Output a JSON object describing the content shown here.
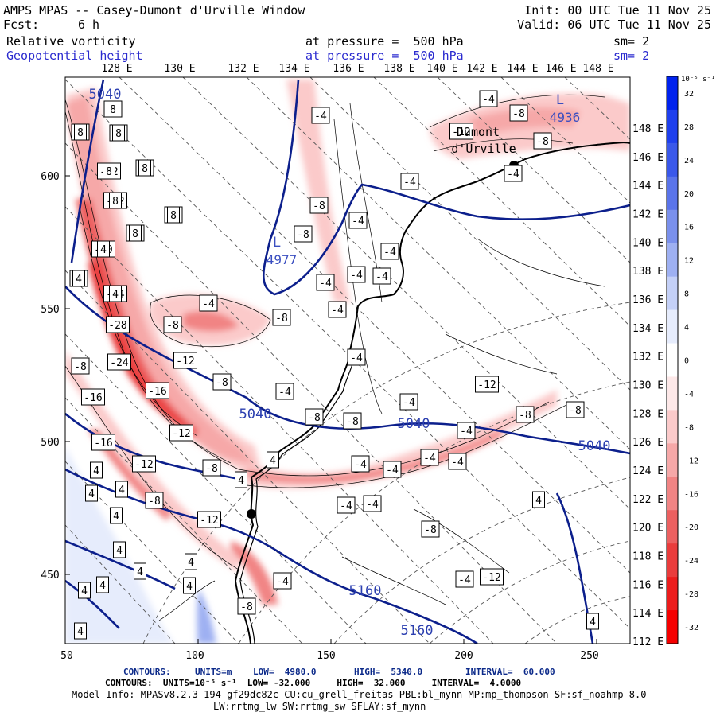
{
  "header": {
    "title": "AMPS MPAS -- Casey-Dumont d'Urville Window",
    "forecast_label": "Fcst:",
    "forecast_hours": "6 h",
    "init": "Init: 00 UTC Tue 11 Nov 25",
    "valid": "Valid: 06 UTC Tue 11 Nov 25",
    "field1_name": "Relative vorticity",
    "field1_level": "at pressure =  500 hPa",
    "field1_sm": "sm= 2",
    "field2_name": "Geopotential height",
    "field2_level": "at pressure =  500 hPa",
    "field2_sm": "sm= 2"
  },
  "map": {
    "top_lon_labels": [
      "128 E",
      "130 E",
      "132 E",
      "134 E",
      "136 E",
      "138 E",
      "140 E",
      "142 E",
      "144 E",
      "146 E",
      "148 E"
    ],
    "right_lat_labels": [
      "148 E",
      "146 E",
      "144 E",
      "142 E",
      "140 E",
      "138 E",
      "136 E",
      "134 E",
      "132 E",
      "130 E",
      "128 E",
      "126 E",
      "124 E",
      "122 E",
      "120 E",
      "118 E",
      "116 E",
      "114 E",
      "112 E"
    ],
    "x_ticks": [
      "50",
      "100",
      "150",
      "200",
      "250"
    ],
    "y_ticks": [
      "600",
      "550",
      "500",
      "450"
    ],
    "height_labels": [
      "5040",
      "5040",
      "5040",
      "5040",
      "5160",
      "5160"
    ],
    "low_centers": [
      {
        "letter": "L",
        "value": "4977"
      },
      {
        "letter": "L",
        "value": "4936"
      }
    ],
    "station_labels": [
      "Dumont",
      "d'Urville"
    ],
    "vort_labels": [
      "-4",
      "-8",
      "-8",
      "-12",
      "-4",
      "-12",
      "-4",
      "-8",
      "-20",
      "-8",
      "-24",
      "-28",
      "-24",
      "-16",
      "-8",
      "-16",
      "-12",
      "-16",
      "-12",
      "-8",
      "-8",
      "-12",
      "-4",
      "-8",
      "-12",
      "-8",
      "-4",
      "-8",
      "-8",
      "-4",
      "-8",
      "-8",
      "-4",
      "-4",
      "-8",
      "-4",
      "-8",
      "-12",
      "-8",
      "-4",
      "-4",
      "-12",
      "-8",
      "-8",
      "-4",
      "-4",
      "-4",
      "-4",
      "-4",
      "-4",
      "-4",
      "-4",
      "-4",
      "-4",
      "-4",
      "-4",
      "-4",
      "-4",
      "-8",
      "-12",
      "-4",
      "-8",
      "4",
      "4",
      "4",
      "4",
      "4",
      "4",
      "4",
      "4",
      "4",
      "4",
      "4",
      "4",
      "4",
      "4",
      "4",
      "8",
      "8",
      "8",
      "8",
      "8",
      "8",
      "8",
      "8",
      "4",
      "4",
      "4"
    ]
  },
  "colorbar": {
    "unit_label": "10⁻⁵ s⁻¹",
    "tick_labels": [
      "32",
      "28",
      "24",
      "20",
      "16",
      "12",
      "8",
      "4",
      "0",
      "-4",
      "-8",
      "-12",
      "-16",
      "-20",
      "-24",
      "-28",
      "-32"
    ],
    "colors": [
      "#0022ee",
      "#1f40ee",
      "#3a58ea",
      "#5a74ea",
      "#7a90ec",
      "#9eb0f2",
      "#c4d0f7",
      "#e6ecfc",
      "#ffffff",
      "#fde8e8",
      "#fbcaca",
      "#f6a8a8",
      "#f18484",
      "#ec6060",
      "#ea3c3c",
      "#ec1c1c",
      "#f50000"
    ]
  },
  "footer": {
    "line1_contours": "CONTOURS:",
    "line1_units": "UNITS=m",
    "line1_low": "LOW=  4980.0",
    "line1_high": "HIGH=  5340.0",
    "line1_interval": "INTERVAL=  60.000",
    "line2": "CONTOURS:  UNITS=10⁻⁵ s⁻¹  LOW= -32.000     HIGH=  32.000     INTERVAL=  4.0000",
    "line3": "Model Info: MPASv8.2.3-194-gf29dc82c CU:cu_grell_freitas PBL:bl_mynn MP:mp_thompson SF:sf_noahmp 8.0",
    "line4": "LW:rrtmg_lw SW:rrtmg_sw SFLAY:sf_mynn"
  }
}
